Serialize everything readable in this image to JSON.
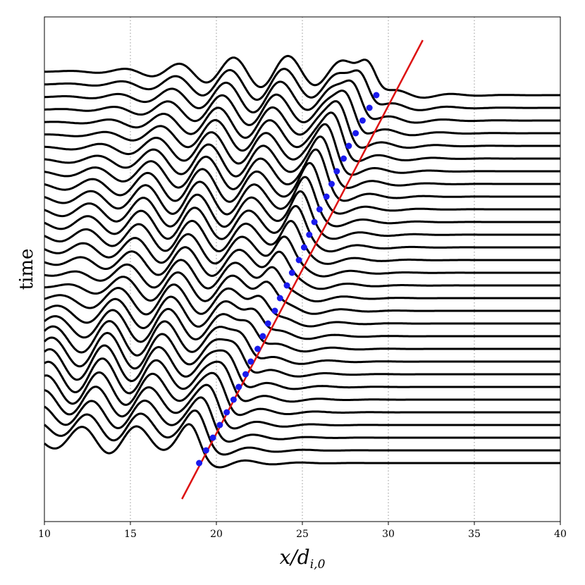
{
  "chart_data": {
    "type": "line",
    "title": "",
    "xlabel": "x/d",
    "xlabel_subscript": "i,0",
    "ylabel": "time",
    "xlim": [
      10,
      40
    ],
    "xticks": [
      10,
      15,
      20,
      25,
      30,
      35,
      40
    ],
    "x_gridlines": [
      15,
      20,
      25,
      30,
      35
    ],
    "grid": "vertical dotted",
    "y_ticks_shown": false,
    "stack": {
      "count": 30,
      "description_free": true
    },
    "front_fit": {
      "color": "#dd1111",
      "x_start": 18.0,
      "x_end": 32.0
    },
    "front_points": {
      "color": "#1a1aee",
      "x": [
        19.0,
        19.4,
        19.8,
        20.2,
        20.6,
        21.0,
        21.3,
        21.7,
        22.0,
        22.4,
        22.7,
        23.0,
        23.4,
        23.7,
        24.1,
        24.4,
        24.8,
        25.1,
        25.4,
        25.7,
        26.0,
        26.4,
        26.7,
        27.0,
        27.4,
        27.7,
        28.1,
        28.5,
        28.9,
        29.3
      ]
    },
    "colors": {
      "curve": "#000000",
      "grid": "#a6a6a6"
    }
  }
}
